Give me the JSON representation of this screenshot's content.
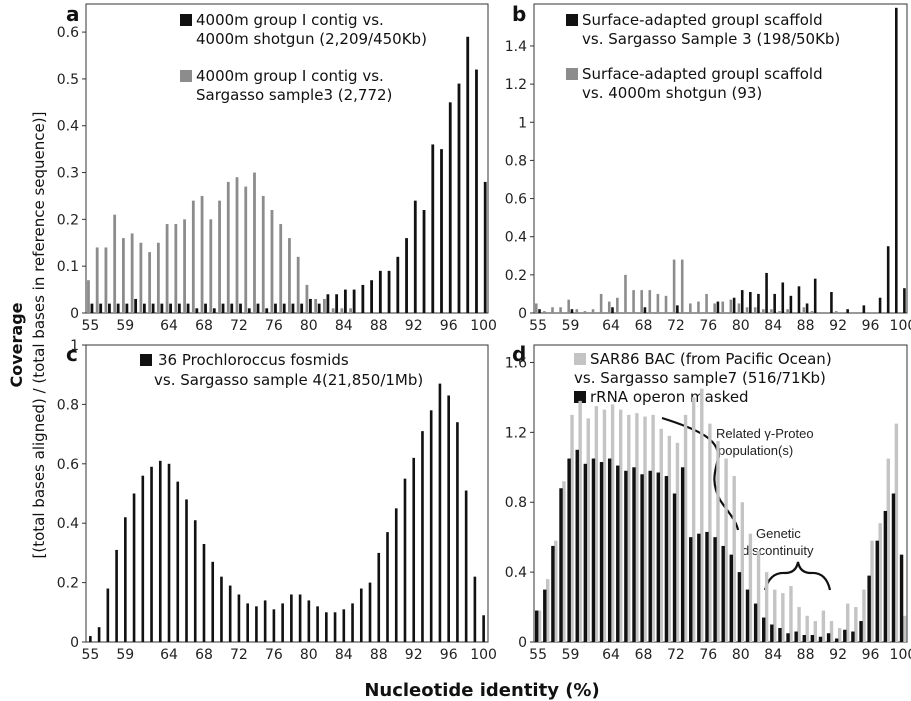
{
  "figure": {
    "xlabel": "Nucleotide identity (%)",
    "ylabel_main": "Coverage",
    "ylabel_sub": "[(total bases aligned) / (total bases in reference sequence)]"
  },
  "chart_data": [
    {
      "panel": "a",
      "type": "bar",
      "x": [
        55,
        56,
        57,
        58,
        59,
        60,
        61,
        62,
        63,
        64,
        65,
        66,
        67,
        68,
        69,
        70,
        71,
        72,
        73,
        74,
        75,
        76,
        77,
        78,
        79,
        80,
        81,
        82,
        83,
        84,
        85,
        86,
        87,
        88,
        89,
        90,
        91,
        92,
        93,
        94,
        95,
        96,
        97,
        98,
        99,
        100
      ],
      "series": [
        {
          "name": "4000m group I contig vs. 4000m shotgun (2,209/450Kb)",
          "color": "#111111",
          "values": [
            0.02,
            0.02,
            0.02,
            0.02,
            0.02,
            0.03,
            0.02,
            0.02,
            0.02,
            0.02,
            0.02,
            0.02,
            0.01,
            0.02,
            0.01,
            0.02,
            0.02,
            0.02,
            0.01,
            0.02,
            0.01,
            0.02,
            0.02,
            0.02,
            0.02,
            0.03,
            0.02,
            0.04,
            0.04,
            0.05,
            0.05,
            0.06,
            0.07,
            0.09,
            0.09,
            0.12,
            0.16,
            0.24,
            0.22,
            0.36,
            0.35,
            0.45,
            0.49,
            0.59,
            0.52,
            0.28
          ]
        },
        {
          "name": "4000m group I contig vs. Sargasso sample3 (2,772)",
          "color": "#8c8c8c",
          "values": [
            0.07,
            0.14,
            0.14,
            0.21,
            0.16,
            0.17,
            0.15,
            0.13,
            0.15,
            0.19,
            0.19,
            0.2,
            0.24,
            0.25,
            0.2,
            0.24,
            0.28,
            0.29,
            0.27,
            0.3,
            0.25,
            0.22,
            0.19,
            0.16,
            0.12,
            0.06,
            0.03,
            0.03,
            0.01,
            0.01,
            0.01,
            0.0,
            0.0,
            0.0,
            0.0,
            0.0,
            0.0,
            0.0,
            0.0,
            0.0,
            0.0,
            0.0,
            0.0,
            0.0,
            0.0,
            0.0
          ]
        }
      ],
      "ylim": [
        0,
        0.66
      ],
      "yticks": [
        0,
        0.1,
        0.2,
        0.3,
        0.4,
        0.5,
        0.6
      ],
      "ytick_labels": [
        "0",
        "0.1",
        "0.2",
        "0.3",
        "0.4",
        "0.5",
        "0.6"
      ],
      "xtick_labels": [
        "55",
        "59",
        "64",
        "68",
        "72",
        "76",
        "80",
        "84",
        "88",
        "92",
        "96",
        "100"
      ],
      "legend_lines": [
        "4000m group I contig vs.",
        "4000m shotgun (2,209/450Kb)",
        "4000m group I contig vs.",
        "Sargasso sample3 (2,772)"
      ]
    },
    {
      "panel": "b",
      "type": "bar",
      "x": [
        55,
        56,
        57,
        58,
        59,
        60,
        61,
        62,
        63,
        64,
        65,
        66,
        67,
        68,
        69,
        70,
        71,
        72,
        73,
        74,
        75,
        76,
        77,
        78,
        79,
        80,
        81,
        82,
        83,
        84,
        85,
        86,
        87,
        88,
        89,
        90,
        91,
        92,
        93,
        94,
        95,
        96,
        97,
        98,
        99,
        100
      ],
      "series": [
        {
          "name": "Surface-adapted groupI scaffold vs. Sargasso Sample 3 (198/50Kb)",
          "color": "#111111",
          "values": [
            0.02,
            0.0,
            0.0,
            0.0,
            0.02,
            0.0,
            0.0,
            0.0,
            0.0,
            0.03,
            0.0,
            0.0,
            0.0,
            0.03,
            0.0,
            0.0,
            0.0,
            0.04,
            0.0,
            0.0,
            0.0,
            0.0,
            0.06,
            0.0,
            0.08,
            0.12,
            0.11,
            0.1,
            0.21,
            0.1,
            0.16,
            0.09,
            0.14,
            0.05,
            0.18,
            0.0,
            0.11,
            0.0,
            0.02,
            0.0,
            0.04,
            0.0,
            0.08,
            0.35,
            1.6,
            0.13
          ]
        },
        {
          "name": "Surface-adapted groupI scaffold vs. 4000m shotgun (93)",
          "color": "#8c8c8c",
          "values": [
            0.05,
            0.01,
            0.03,
            0.03,
            0.07,
            0.02,
            0.01,
            0.02,
            0.1,
            0.06,
            0.08,
            0.2,
            0.12,
            0.12,
            0.12,
            0.1,
            0.09,
            0.28,
            0.28,
            0.05,
            0.06,
            0.1,
            0.05,
            0.06,
            0.07,
            0.05,
            0.03,
            0.03,
            0.02,
            0.02,
            0.01,
            0.02,
            0.0,
            0.03,
            0.01,
            0.0,
            0.0,
            0.01,
            0.0,
            0.0,
            0.0,
            0.0,
            0.0,
            0.0,
            0.0,
            0.0
          ]
        }
      ],
      "ylim": [
        0,
        1.62
      ],
      "yticks": [
        0,
        0.2,
        0.4,
        0.6,
        0.8,
        1,
        1.2,
        1.4
      ],
      "ytick_labels": [
        "0",
        "0.2",
        "0.4",
        "0.6",
        "0.8",
        "1",
        "1.2",
        "1.4"
      ],
      "xtick_labels": [
        "55",
        "59",
        "64",
        "68",
        "72",
        "76",
        "80",
        "84",
        "88",
        "92",
        "96",
        "100"
      ],
      "legend_lines": [
        "Surface-adapted groupI scaffold",
        "vs. Sargasso Sample 3 (198/50Kb)",
        "Surface-adapted groupI scaffold",
        "vs. 4000m shotgun (93)"
      ]
    },
    {
      "panel": "c",
      "type": "bar",
      "x": [
        55,
        56,
        57,
        58,
        59,
        60,
        61,
        62,
        63,
        64,
        65,
        66,
        67,
        68,
        69,
        70,
        71,
        72,
        73,
        74,
        75,
        76,
        77,
        78,
        79,
        80,
        81,
        82,
        83,
        84,
        85,
        86,
        87,
        88,
        89,
        90,
        91,
        92,
        93,
        94,
        95,
        96,
        97,
        98,
        99,
        100
      ],
      "series": [
        {
          "name": "36 Prochloroccus fosmids vs. Sargasso sample 4(21,850/1Mb)",
          "color": "#111111",
          "values": [
            0.02,
            0.05,
            0.18,
            0.31,
            0.42,
            0.5,
            0.56,
            0.59,
            0.61,
            0.6,
            0.54,
            0.48,
            0.41,
            0.33,
            0.27,
            0.22,
            0.19,
            0.16,
            0.13,
            0.12,
            0.14,
            0.11,
            0.13,
            0.16,
            0.16,
            0.14,
            0.12,
            0.1,
            0.1,
            0.11,
            0.13,
            0.18,
            0.2,
            0.3,
            0.37,
            0.45,
            0.55,
            0.62,
            0.71,
            0.78,
            0.87,
            0.83,
            0.74,
            0.51,
            0.22,
            0.09
          ]
        }
      ],
      "ylim": [
        0,
        1
      ],
      "yticks": [
        0,
        0.2,
        0.4,
        0.6,
        0.8,
        1
      ],
      "ytick_labels": [
        "0",
        "0.2",
        "0.4",
        "0.6",
        "0.8",
        "1"
      ],
      "xtick_labels": [
        "55",
        "59",
        "64",
        "68",
        "72",
        "76",
        "80",
        "84",
        "88",
        "92",
        "96",
        "100"
      ],
      "legend_lines": [
        "36 Prochloroccus fosmids",
        "vs. Sargasso sample 4(21,850/1Mb)"
      ]
    },
    {
      "panel": "d",
      "type": "bar",
      "x": [
        55,
        56,
        57,
        58,
        59,
        60,
        61,
        62,
        63,
        64,
        65,
        66,
        67,
        68,
        69,
        70,
        71,
        72,
        73,
        74,
        75,
        76,
        77,
        78,
        79,
        80,
        81,
        82,
        83,
        84,
        85,
        86,
        87,
        88,
        89,
        90,
        91,
        92,
        93,
        94,
        95,
        96,
        97,
        98,
        99,
        100
      ],
      "series": [
        {
          "name": "SAR86 BAC (from Pacific Ocean) vs. Sargasso sample7 (516/71Kb)",
          "color": "#c4c4c4",
          "values": [
            0.18,
            0.36,
            0.58,
            0.92,
            1.3,
            1.38,
            1.28,
            1.35,
            1.33,
            1.36,
            1.33,
            1.3,
            1.31,
            1.29,
            1.3,
            1.22,
            1.18,
            1.14,
            1.3,
            1.4,
            1.45,
            1.25,
            1.15,
            1.05,
            0.95,
            0.8,
            0.62,
            0.52,
            0.4,
            0.3,
            0.28,
            0.32,
            0.2,
            0.15,
            0.12,
            0.18,
            0.12,
            0.08,
            0.22,
            0.2,
            0.3,
            0.58,
            0.68,
            1.05,
            1.25,
            0.15
          ]
        },
        {
          "name": "rRNA operon masked",
          "color": "#111111",
          "values": [
            0.18,
            0.3,
            0.55,
            0.88,
            1.05,
            1.1,
            1.02,
            1.05,
            1.03,
            1.05,
            1.01,
            0.98,
            1.0,
            0.96,
            0.98,
            0.97,
            0.95,
            0.85,
            1.0,
            0.6,
            0.62,
            0.63,
            0.6,
            0.55,
            0.5,
            0.4,
            0.3,
            0.22,
            0.14,
            0.1,
            0.08,
            0.05,
            0.06,
            0.04,
            0.04,
            0.03,
            0.05,
            0.02,
            0.07,
            0.06,
            0.12,
            0.38,
            0.58,
            0.75,
            0.85,
            0.5
          ]
        }
      ],
      "ylim": [
        0,
        1.7
      ],
      "yticks": [
        0,
        0.4,
        0.8,
        1.2,
        1.6
      ],
      "ytick_labels": [
        "0",
        "0.4",
        "0.8",
        "1.2",
        "1.6"
      ],
      "xtick_labels": [
        "55",
        "59",
        "64",
        "68",
        "72",
        "76",
        "80",
        "84",
        "88",
        "92",
        "96",
        "100"
      ],
      "legend_lines": [
        "SAR86 BAC (from Pacific Ocean)",
        "vs. Sargasso sample7 (516/71Kb)",
        "rRNA operon masked"
      ],
      "annotations": [
        "Related γ-Proteo",
        "population(s)",
        "Genetic",
        "discontinuity"
      ]
    }
  ]
}
